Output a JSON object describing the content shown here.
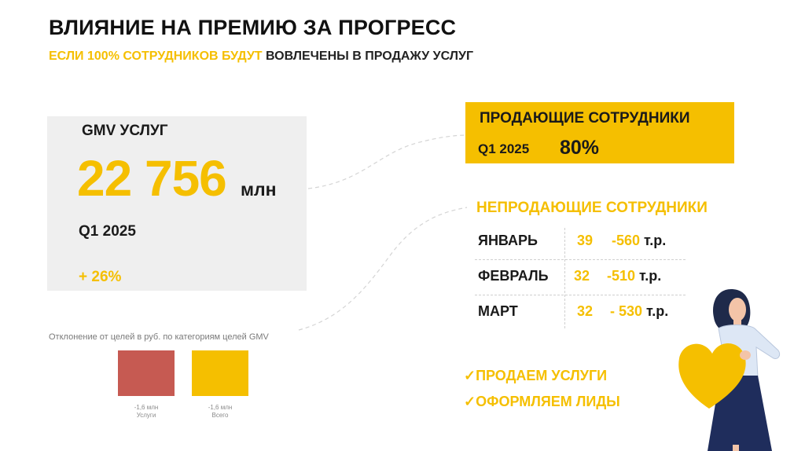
{
  "header": {
    "title": "ВЛИЯНИЕ НА ПРЕМИЮ ЗА ПРОГРЕСС",
    "subtitle_part1": "ЕСЛИ ",
    "subtitle_part2": "100% СОТРУДНИКОВ БУДУТ",
    "subtitle_part3": " ВОВЛЕЧЕНЫ В ПРОДАЖУ УСЛУГ"
  },
  "gmv_card": {
    "label_bold": "GMV",
    "label_rest": " УСЛУГ",
    "value": "22 756",
    "unit": "млн",
    "period": "Q1 2025",
    "growth": "+ 26%"
  },
  "selling": {
    "title": "ПРОДАЮЩИЕ СОТРУДНИКИ",
    "period": "Q1 2025",
    "value": "80%"
  },
  "non_selling": {
    "title": "НЕПРОДАЮЩИЕ СОТРУДНИКИ",
    "rows": [
      {
        "month": "ЯНВАРЬ",
        "count": "39",
        "amount": "-560",
        "unit": " т.р."
      },
      {
        "month": "ФЕВРАЛЬ",
        "count": "32",
        "amount": "-510",
        "unit": " т.р."
      },
      {
        "month": "МАРТ",
        "count": "32",
        "amount": "- 530",
        "unit": " т.р."
      }
    ]
  },
  "checklist": [
    {
      "mark": "✓",
      "text": "ПРОДАЕМ УСЛУГИ"
    },
    {
      "mark": "✓",
      "text": "ОФОРМЛЯЕМ ЛИДЫ"
    }
  ],
  "colors": {
    "accent": "#f5bf00",
    "bar_red": "#c65a52",
    "card_bg": "#efefef"
  },
  "chart_data": {
    "type": "bar",
    "title": "Отклонение от целей в руб. по категориям целей GMV",
    "categories": [
      "Услуги",
      "Всего"
    ],
    "value_labels": [
      "-1,6 млн",
      "-1,6 млн"
    ],
    "values": [
      -1.6,
      -1.6
    ],
    "bar_colors": [
      "#c65a52",
      "#f5bf00"
    ],
    "grid": false
  },
  "illustration": {
    "name": "woman-holding-heart"
  }
}
